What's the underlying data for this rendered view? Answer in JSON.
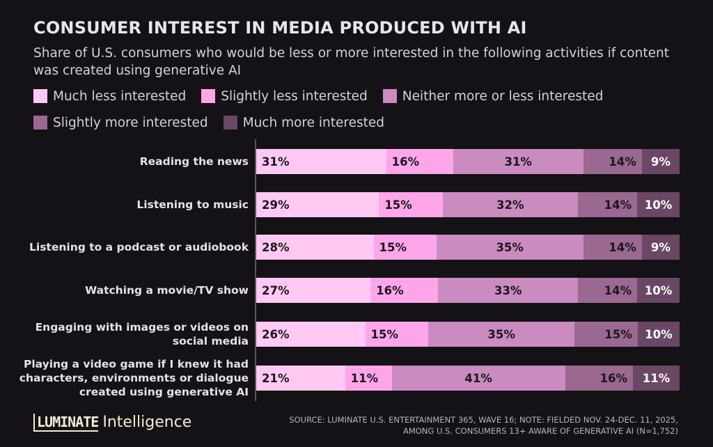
{
  "header": {
    "title": "CONSUMER INTEREST IN MEDIA PRODUCED WITH AI",
    "subtitle": "Share of U.S. consumers who would be less or more interested in the following activities if content was created using generative AI"
  },
  "chart_data": {
    "type": "bar",
    "orientation": "horizontal",
    "stacked": true,
    "title": "CONSUMER INTEREST IN MEDIA PRODUCED WITH AI",
    "categories": [
      "Reading the news",
      "Listening to music",
      "Listening to a podcast or audiobook",
      "Watching a movie/TV show",
      "Engaging with images or videos on social media",
      "Playing a video game if I knew it had characters, environments or dialogue created using generative AI"
    ],
    "series": [
      {
        "name": "Much less interested",
        "color": "#ffc9f3",
        "values": [
          31,
          29,
          28,
          27,
          26,
          21
        ]
      },
      {
        "name": "Slightly less interested",
        "color": "#ffa6ea",
        "values": [
          16,
          15,
          15,
          16,
          15,
          11
        ]
      },
      {
        "name": "Neither more or less interested",
        "color": "#c98bc0",
        "values": [
          31,
          32,
          35,
          33,
          35,
          41
        ]
      },
      {
        "name": "Slightly more interested",
        "color": "#9a6890",
        "values": [
          14,
          14,
          14,
          14,
          15,
          16
        ]
      },
      {
        "name": "Much more interested",
        "color": "#6a4764",
        "values": [
          9,
          10,
          9,
          10,
          10,
          11
        ]
      }
    ],
    "unit": "%",
    "legend_position": "top",
    "grid": false
  },
  "footer": {
    "logo_bold": "LUMINATE",
    "logo_light": "Intelligence",
    "source_line1": "SOURCE: LUMINATE U.S. ENTERTAINMENT 365, WAVE 16; NOTE: FIELDED NOV. 24-DEC. 11, 2025,",
    "source_line2": "AMONG U.S. CONSUMERS 13+ AWARE OF GENERATIVE AI (N=1,752)"
  }
}
